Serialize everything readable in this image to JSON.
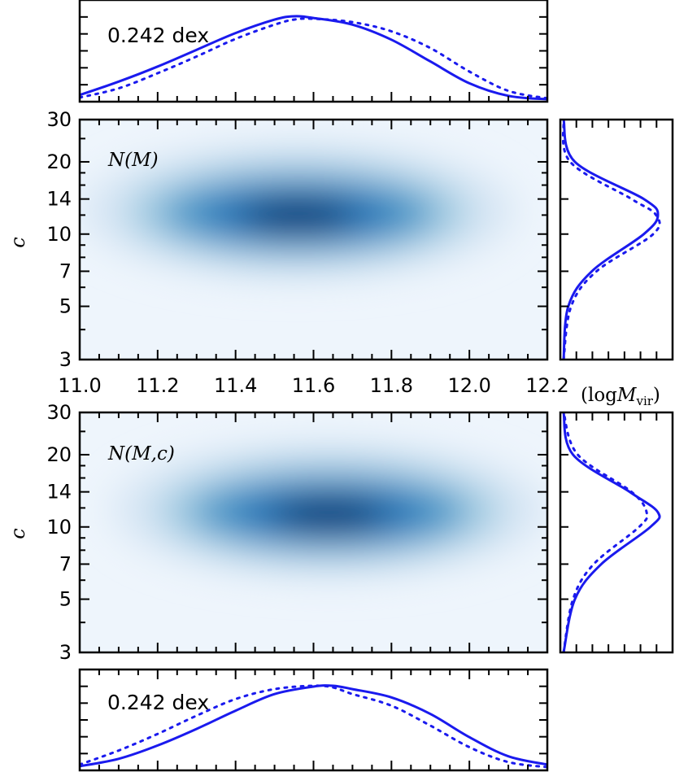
{
  "chart_data": [
    {
      "panel": "top-marginal",
      "type": "line",
      "annotation": "0.242 dex",
      "x": [
        11.0,
        11.1,
        11.2,
        11.3,
        11.4,
        11.5,
        11.55,
        11.6,
        11.7,
        11.8,
        11.9,
        12.0,
        12.1,
        12.2
      ],
      "series": [
        {
          "style": "solid",
          "values": [
            0.06,
            0.22,
            0.4,
            0.6,
            0.8,
            0.96,
            1.0,
            0.98,
            0.9,
            0.72,
            0.46,
            0.2,
            0.05,
            0.01
          ]
        },
        {
          "style": "dotted",
          "values": [
            0.03,
            0.14,
            0.32,
            0.52,
            0.73,
            0.9,
            0.96,
            0.97,
            0.93,
            0.82,
            0.62,
            0.34,
            0.11,
            0.02
          ]
        }
      ],
      "xlim": [
        11.0,
        12.2
      ]
    },
    {
      "panel": "heatmap-1",
      "type": "heatmap",
      "annotation": "N(M)",
      "ylabel": "c",
      "xlim": [
        11.0,
        12.2
      ],
      "ylim": [
        3,
        30
      ],
      "yscale": "log",
      "x_ticks": [
        "11.0",
        "11.2",
        "11.4",
        "11.6",
        "11.8",
        "12.0",
        "12.2"
      ],
      "y_ticks": [
        "3",
        "5",
        "7",
        "10",
        "14",
        "20",
        "30"
      ],
      "x_unit_label": "(logM_vir)",
      "peak": {
        "x": 11.56,
        "c": 12.5
      },
      "colormap": "Blues"
    },
    {
      "panel": "right-marginal-1",
      "type": "line",
      "ylim": [
        3,
        30
      ],
      "yscale": "log",
      "c": [
        3,
        5,
        7,
        10,
        12,
        14,
        20,
        30
      ],
      "series": [
        {
          "style": "solid",
          "values": [
            0.0,
            0.05,
            0.3,
            0.85,
            1.0,
            0.85,
            0.12,
            0.0
          ]
        },
        {
          "style": "dotted",
          "values": [
            0.0,
            0.08,
            0.35,
            0.95,
            0.98,
            0.72,
            0.07,
            0.0
          ]
        }
      ]
    },
    {
      "panel": "heatmap-2",
      "type": "heatmap",
      "annotation": "N(M,c)",
      "ylabel": "c",
      "xlim": [
        11.0,
        12.2
      ],
      "ylim": [
        3,
        30
      ],
      "yscale": "log",
      "y_ticks": [
        "3",
        "5",
        "7",
        "10",
        "14",
        "20",
        "30"
      ],
      "peak": {
        "x": 11.64,
        "c": 11.8
      },
      "colormap": "Blues"
    },
    {
      "panel": "right-marginal-2",
      "type": "line",
      "ylim": [
        3,
        30
      ],
      "yscale": "log",
      "c": [
        3,
        5,
        7,
        10,
        11.5,
        14,
        20,
        30
      ],
      "series": [
        {
          "style": "solid",
          "values": [
            0.0,
            0.12,
            0.4,
            0.92,
            1.0,
            0.7,
            0.1,
            0.0
          ]
        },
        {
          "style": "dotted",
          "values": [
            0.0,
            0.1,
            0.32,
            0.8,
            0.88,
            0.72,
            0.15,
            0.0
          ]
        }
      ]
    },
    {
      "panel": "bottom-marginal",
      "type": "line",
      "annotation": "0.242 dex",
      "x": [
        11.0,
        11.1,
        11.2,
        11.3,
        11.4,
        11.5,
        11.6,
        11.65,
        11.7,
        11.8,
        11.9,
        12.0,
        12.1,
        12.2
      ],
      "series": [
        {
          "style": "solid",
          "values": [
            0.03,
            0.12,
            0.28,
            0.48,
            0.7,
            0.9,
            0.99,
            1.0,
            0.96,
            0.86,
            0.66,
            0.38,
            0.15,
            0.05
          ]
        },
        {
          "style": "dotted",
          "values": [
            0.05,
            0.22,
            0.42,
            0.64,
            0.84,
            0.96,
            1.0,
            0.98,
            0.9,
            0.76,
            0.52,
            0.26,
            0.08,
            0.02
          ]
        }
      ],
      "xlim": [
        11.0,
        12.2
      ]
    }
  ],
  "colors": {
    "line": "#1a1aee",
    "heat_peak": "#08306b",
    "heat_mid": "#4292c6",
    "heat_low": "#eef5fc"
  }
}
